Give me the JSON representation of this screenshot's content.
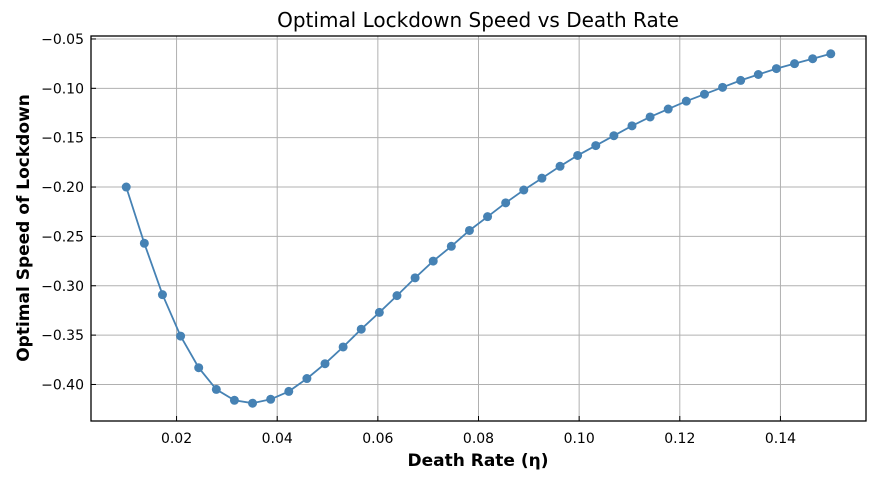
{
  "chart_data": {
    "type": "line",
    "title": "Optimal Lockdown Speed vs Death Rate",
    "xlabel": "Death Rate (η)",
    "ylabel": "Optimal Speed of Lockdown",
    "xlim": [
      0.003,
      0.157
    ],
    "ylim": [
      -0.437,
      -0.047
    ],
    "x_ticks": [
      {
        "value": 0.02,
        "label": "0.02"
      },
      {
        "value": 0.04,
        "label": "0.04"
      },
      {
        "value": 0.06,
        "label": "0.06"
      },
      {
        "value": 0.08,
        "label": "0.08"
      },
      {
        "value": 0.1,
        "label": "0.10"
      },
      {
        "value": 0.12,
        "label": "0.12"
      },
      {
        "value": 0.14,
        "label": "0.14"
      }
    ],
    "y_ticks": [
      {
        "value": -0.4,
        "label": "−0.40"
      },
      {
        "value": -0.35,
        "label": "−0.35"
      },
      {
        "value": -0.3,
        "label": "−0.30"
      },
      {
        "value": -0.25,
        "label": "−0.25"
      },
      {
        "value": -0.2,
        "label": "−0.20"
      },
      {
        "value": -0.15,
        "label": "−0.15"
      },
      {
        "value": -0.1,
        "label": "−0.10"
      },
      {
        "value": -0.05,
        "label": "−0.05"
      }
    ],
    "grid": true,
    "series": [
      {
        "color": "#4682b4",
        "marker": "circle",
        "x": [
          0.01,
          0.0136,
          0.0172,
          0.0208,
          0.0244,
          0.0279,
          0.0315,
          0.0351,
          0.0387,
          0.0423,
          0.0459,
          0.0495,
          0.0531,
          0.0567,
          0.0603,
          0.0638,
          0.0674,
          0.071,
          0.0746,
          0.0782,
          0.0818,
          0.0854,
          0.089,
          0.0926,
          0.0962,
          0.0997,
          0.1033,
          0.1069,
          0.1105,
          0.1141,
          0.1177,
          0.1213,
          0.1249,
          0.1285,
          0.1321,
          0.1356,
          0.1392,
          0.1428,
          0.1464,
          0.15
        ],
        "y": [
          -0.2,
          -0.257,
          -0.309,
          -0.351,
          -0.383,
          -0.405,
          -0.416,
          -0.419,
          -0.415,
          -0.407,
          -0.394,
          -0.379,
          -0.362,
          -0.344,
          -0.327,
          -0.31,
          -0.292,
          -0.275,
          -0.26,
          -0.244,
          -0.23,
          -0.216,
          -0.203,
          -0.191,
          -0.179,
          -0.168,
          -0.158,
          -0.148,
          -0.138,
          -0.129,
          -0.121,
          -0.113,
          -0.106,
          -0.099,
          -0.092,
          -0.086,
          -0.08,
          -0.075,
          -0.07,
          -0.065
        ]
      }
    ]
  }
}
